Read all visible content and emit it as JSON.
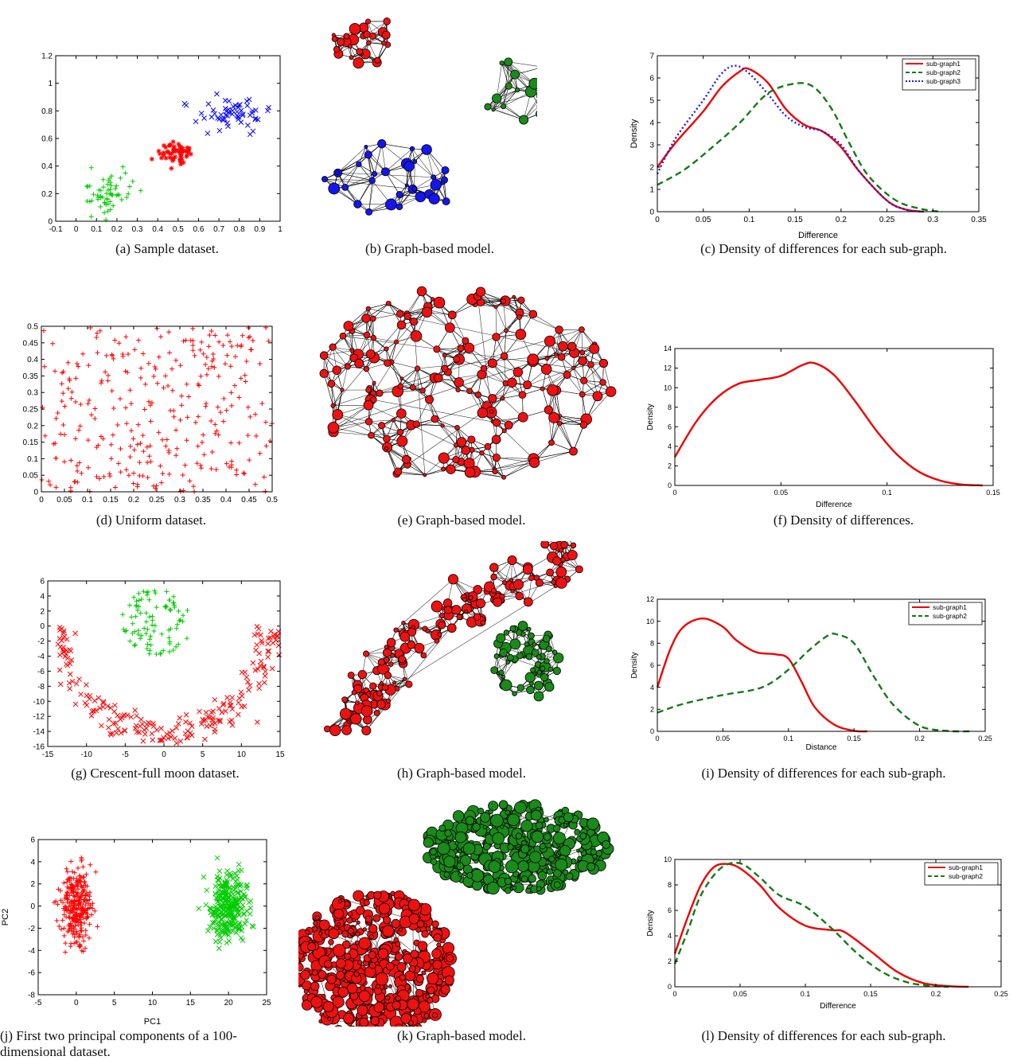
{
  "captions": {
    "a": "(a)  Sample dataset.",
    "b": "(b)  Graph-based model.",
    "c": "(c)  Density of differences for each sub-graph.",
    "d": "(d)  Uniform dataset.",
    "e": "(e)  Graph-based model.",
    "f": "(f)  Density of differences.",
    "g": "(g)  Crescent-full moon dataset.",
    "h": "(h)  Graph-based model.",
    "i": "(i)  Density of differences for each sub-graph.",
    "j": "(j)  First two principal components of a 100-dimensional dataset.",
    "k": "(k)  Graph-based model.",
    "l": "(l)  Density of differences for each sub-graph."
  },
  "colors": {
    "red": "#ff0000",
    "green": "#00cc00",
    "blue": "#0000ff",
    "dark_green": "#1a8a1a",
    "node_red": "#ee1111",
    "line_red": "#ee0000",
    "line_green": "#147a14",
    "line_blue": "#1a1aee"
  },
  "graphs_icon": "network-graph",
  "chart_data": [
    {
      "id": "a",
      "type": "scatter",
      "xlim": [
        -0.1,
        1
      ],
      "ylim": [
        0,
        1.2
      ],
      "xticks": [
        -0.1,
        0,
        0.1,
        0.2,
        0.3,
        0.4,
        0.5,
        0.6,
        0.7,
        0.8,
        0.9,
        1
      ],
      "yticks": [
        0,
        0.2,
        0.4,
        0.6,
        0.8,
        1,
        1.2
      ],
      "xlabel": "",
      "ylabel": "",
      "title": "",
      "clusters": [
        {
          "marker": "+",
          "color": "#00cc00",
          "n": 60,
          "cx": 0.15,
          "cy": 0.2,
          "sx": 0.06,
          "sy": 0.08
        },
        {
          "marker": "*",
          "color": "#ff0000",
          "n": 60,
          "cx": 0.5,
          "cy": 0.5,
          "sx": 0.04,
          "sy": 0.04
        },
        {
          "marker": "x",
          "color": "#0000ff",
          "n": 60,
          "cx": 0.76,
          "cy": 0.78,
          "sx": 0.08,
          "sy": 0.09
        }
      ]
    },
    {
      "id": "c",
      "type": "line",
      "xlim": [
        0,
        0.35
      ],
      "ylim": [
        0,
        7
      ],
      "xticks": [
        0,
        0.05,
        0.1,
        0.15,
        0.2,
        0.25,
        0.3,
        0.35
      ],
      "yticks": [
        0,
        1,
        2,
        3,
        4,
        5,
        6,
        7
      ],
      "xlabel": "Difference",
      "ylabel": "Density",
      "title": "",
      "legend": "top-right",
      "series": [
        {
          "name": "sub-graph1",
          "color": "#ee0000",
          "dash": "solid",
          "x": [
            0,
            0.02,
            0.05,
            0.07,
            0.09,
            0.1,
            0.12,
            0.14,
            0.16,
            0.18,
            0.2,
            0.22,
            0.25,
            0.27,
            0.29
          ],
          "y": [
            2.0,
            3.1,
            4.5,
            5.6,
            6.3,
            6.4,
            5.8,
            4.6,
            3.9,
            3.6,
            2.9,
            1.8,
            0.5,
            0.1,
            0
          ]
        },
        {
          "name": "sub-graph2",
          "color": "#147a14",
          "dash": "dashed",
          "x": [
            0,
            0.03,
            0.06,
            0.09,
            0.12,
            0.15,
            0.17,
            0.19,
            0.21,
            0.23,
            0.26,
            0.29,
            0.31
          ],
          "y": [
            1.2,
            1.9,
            2.9,
            4.0,
            5.3,
            5.75,
            5.6,
            4.6,
            3.0,
            1.6,
            0.5,
            0.1,
            0
          ]
        },
        {
          "name": "sub-graph3",
          "color": "#1a1aee",
          "dash": "dotted",
          "x": [
            0,
            0.02,
            0.05,
            0.07,
            0.085,
            0.1,
            0.12,
            0.14,
            0.16,
            0.18,
            0.2,
            0.22,
            0.25,
            0.27,
            0.29
          ],
          "y": [
            1.7,
            3.3,
            5.0,
            6.2,
            6.55,
            6.2,
            5.3,
            4.3,
            3.8,
            3.6,
            3.0,
            1.8,
            0.5,
            0.1,
            0
          ]
        }
      ]
    },
    {
      "id": "d",
      "type": "scatter",
      "xlim": [
        0,
        0.5
      ],
      "ylim": [
        0,
        0.5
      ],
      "xticks": [
        0,
        0.05,
        0.1,
        0.15,
        0.2,
        0.25,
        0.3,
        0.35,
        0.4,
        0.45,
        0.5
      ],
      "yticks": [
        0,
        0.05,
        0.1,
        0.15,
        0.2,
        0.25,
        0.3,
        0.35,
        0.4,
        0.45,
        0.5
      ],
      "xlabel": "",
      "ylabel": "",
      "title": "",
      "clusters": [
        {
          "marker": "+",
          "color": "#ff0000",
          "n": 300,
          "uniform": true,
          "x0": 0.0,
          "x1": 0.5,
          "y0": 0.0,
          "y1": 0.5
        }
      ]
    },
    {
      "id": "f",
      "type": "line",
      "xlim": [
        0,
        0.15
      ],
      "ylim": [
        0,
        14
      ],
      "xticks": [
        0,
        0.05,
        0.1,
        0.15
      ],
      "yticks": [
        0,
        2,
        4,
        6,
        8,
        10,
        12,
        14
      ],
      "xlabel": "Difference",
      "ylabel": "Density",
      "title": "",
      "series": [
        {
          "color": "#ee0000",
          "dash": "solid",
          "x": [
            0,
            0.01,
            0.02,
            0.03,
            0.04,
            0.05,
            0.06,
            0.066,
            0.075,
            0.085,
            0.095,
            0.105,
            0.115,
            0.125,
            0.135,
            0.145
          ],
          "y": [
            2.9,
            6.5,
            9.0,
            10.4,
            10.8,
            11.2,
            12.3,
            12.5,
            11.3,
            8.6,
            5.6,
            3.1,
            1.4,
            0.5,
            0.1,
            0
          ]
        }
      ]
    },
    {
      "id": "g",
      "type": "scatter",
      "xlim": [
        -15,
        15
      ],
      "ylim": [
        -16,
        6
      ],
      "xticks": [
        -15,
        -10,
        -5,
        0,
        5,
        10,
        15
      ],
      "yticks": [
        -16,
        -14,
        -12,
        -10,
        -8,
        -6,
        -4,
        -2,
        0,
        2,
        4,
        6
      ],
      "xlabel": "",
      "ylabel": "",
      "title": "",
      "clusters": [
        {
          "marker": "+",
          "color": "#00cc00",
          "n": 90,
          "disk": true,
          "cx": -1,
          "cy": 0.5,
          "r": 4.5
        },
        {
          "marker": "x",
          "color": "#ff0000",
          "n": 220,
          "arc": true,
          "cx": 0,
          "cy": 0,
          "R": 13.5,
          "w": 1.7
        }
      ]
    },
    {
      "id": "i",
      "type": "line",
      "xlim": [
        0,
        0.25
      ],
      "ylim": [
        0,
        12
      ],
      "xticks": [
        0,
        0.05,
        0.1,
        0.15,
        0.2,
        0.25
      ],
      "yticks": [
        0,
        2,
        4,
        6,
        8,
        10,
        12
      ],
      "xlabel": "Distance",
      "ylabel": "Density",
      "title": "",
      "legend": "top-right",
      "series": [
        {
          "name": "sub-graph1",
          "color": "#ee0000",
          "dash": "solid",
          "x": [
            0,
            0.01,
            0.02,
            0.035,
            0.05,
            0.06,
            0.075,
            0.09,
            0.1,
            0.11,
            0.12,
            0.135,
            0.15,
            0.16
          ],
          "y": [
            4.0,
            7.5,
            9.5,
            10.25,
            9.5,
            8.3,
            7.2,
            7.0,
            6.6,
            4.5,
            2.2,
            0.6,
            0.05,
            0
          ]
        },
        {
          "name": "sub-graph2",
          "color": "#147a14",
          "dash": "dashed",
          "x": [
            0,
            0.02,
            0.05,
            0.08,
            0.1,
            0.115,
            0.13,
            0.137,
            0.15,
            0.165,
            0.18,
            0.2,
            0.22,
            0.24
          ],
          "y": [
            1.7,
            2.5,
            3.3,
            4.0,
            5.6,
            7.3,
            8.7,
            8.8,
            8.0,
            5.0,
            2.4,
            0.5,
            0.05,
            0
          ]
        }
      ]
    },
    {
      "id": "j",
      "type": "scatter",
      "xlim": [
        -5,
        25
      ],
      "ylim": [
        -8,
        6
      ],
      "xticks": [
        -5,
        0,
        5,
        10,
        15,
        20,
        25
      ],
      "yticks": [
        -8,
        -6,
        -4,
        -2,
        0,
        2,
        4,
        6
      ],
      "xlabel": "PC1",
      "ylabel": "PC2",
      "title": "",
      "clusters": [
        {
          "marker": "+",
          "color": "#ff0000",
          "n": 280,
          "cx": 0,
          "cy": 0,
          "sx": 1.1,
          "sy": 1.6
        },
        {
          "marker": "x",
          "color": "#00cc00",
          "n": 280,
          "cx": 20,
          "cy": 0,
          "sx": 1.2,
          "sy": 1.6
        }
      ]
    },
    {
      "id": "l",
      "type": "line",
      "xlim": [
        0,
        0.25
      ],
      "ylim": [
        0,
        10
      ],
      "xticks": [
        0,
        0.05,
        0.1,
        0.15,
        0.2,
        0.25
      ],
      "yticks": [
        0,
        2,
        4,
        6,
        8,
        10
      ],
      "xlabel": "Difference",
      "ylabel": "Density",
      "title": "",
      "legend": "top-right",
      "series": [
        {
          "name": "sub-graph1",
          "color": "#ee0000",
          "dash": "solid",
          "x": [
            0,
            0.01,
            0.02,
            0.03,
            0.04,
            0.05,
            0.065,
            0.08,
            0.1,
            0.12,
            0.13,
            0.15,
            0.17,
            0.19,
            0.21,
            0.225
          ],
          "y": [
            2.6,
            5.5,
            8.0,
            9.4,
            9.65,
            9.3,
            8.0,
            6.2,
            4.8,
            4.45,
            4.3,
            2.8,
            1.2,
            0.3,
            0.05,
            0
          ]
        },
        {
          "name": "sub-graph2",
          "color": "#147a14",
          "dash": "dashed",
          "x": [
            0,
            0.01,
            0.02,
            0.035,
            0.05,
            0.065,
            0.08,
            0.1,
            0.12,
            0.14,
            0.16,
            0.18,
            0.2,
            0.21
          ],
          "y": [
            1.8,
            4.4,
            7.2,
            9.3,
            9.7,
            8.6,
            7.2,
            6.3,
            4.6,
            2.6,
            1.1,
            0.3,
            0.05,
            0
          ]
        }
      ]
    }
  ],
  "graph_panels": [
    {
      "id": "b",
      "groups": [
        {
          "color": "#ee1111",
          "n": 28,
          "cx": 455,
          "cy": 48,
          "rx": 40,
          "ry": 35
        },
        {
          "color": "#1a8a1a",
          "n": 30,
          "cx": 673,
          "cy": 112,
          "rx": 72,
          "ry": 42
        },
        {
          "color": "#1515ee",
          "n": 34,
          "cx": 490,
          "cy": 228,
          "rx": 85,
          "ry": 48
        }
      ]
    },
    {
      "id": "e",
      "groups": [
        {
          "color": "#ee1111",
          "n": 190,
          "cx": 578,
          "cy": 485,
          "rx": 190,
          "ry": 125
        }
      ]
    },
    {
      "id": "h",
      "groups": [
        {
          "color": "#ee1111",
          "n": 170,
          "path": [
            [
              425,
              920
            ],
            [
              470,
              870
            ],
            [
              500,
              810
            ],
            [
              560,
              770
            ],
            [
              640,
              740
            ],
            [
              720,
              700
            ]
          ],
          "w": 28
        },
        {
          "color": "#1a8a1a",
          "n": 70,
          "cx": 660,
          "cy": 830,
          "rx": 42,
          "ry": 50
        }
      ]
    },
    {
      "id": "k",
      "groups": [
        {
          "color": "#1a8a1a",
          "n": 420,
          "cx": 650,
          "cy": 1065,
          "rx": 115,
          "ry": 55
        },
        {
          "color": "#ee1111",
          "n": 520,
          "cx": 470,
          "cy": 1215,
          "rx": 100,
          "ry": 95
        }
      ]
    }
  ]
}
